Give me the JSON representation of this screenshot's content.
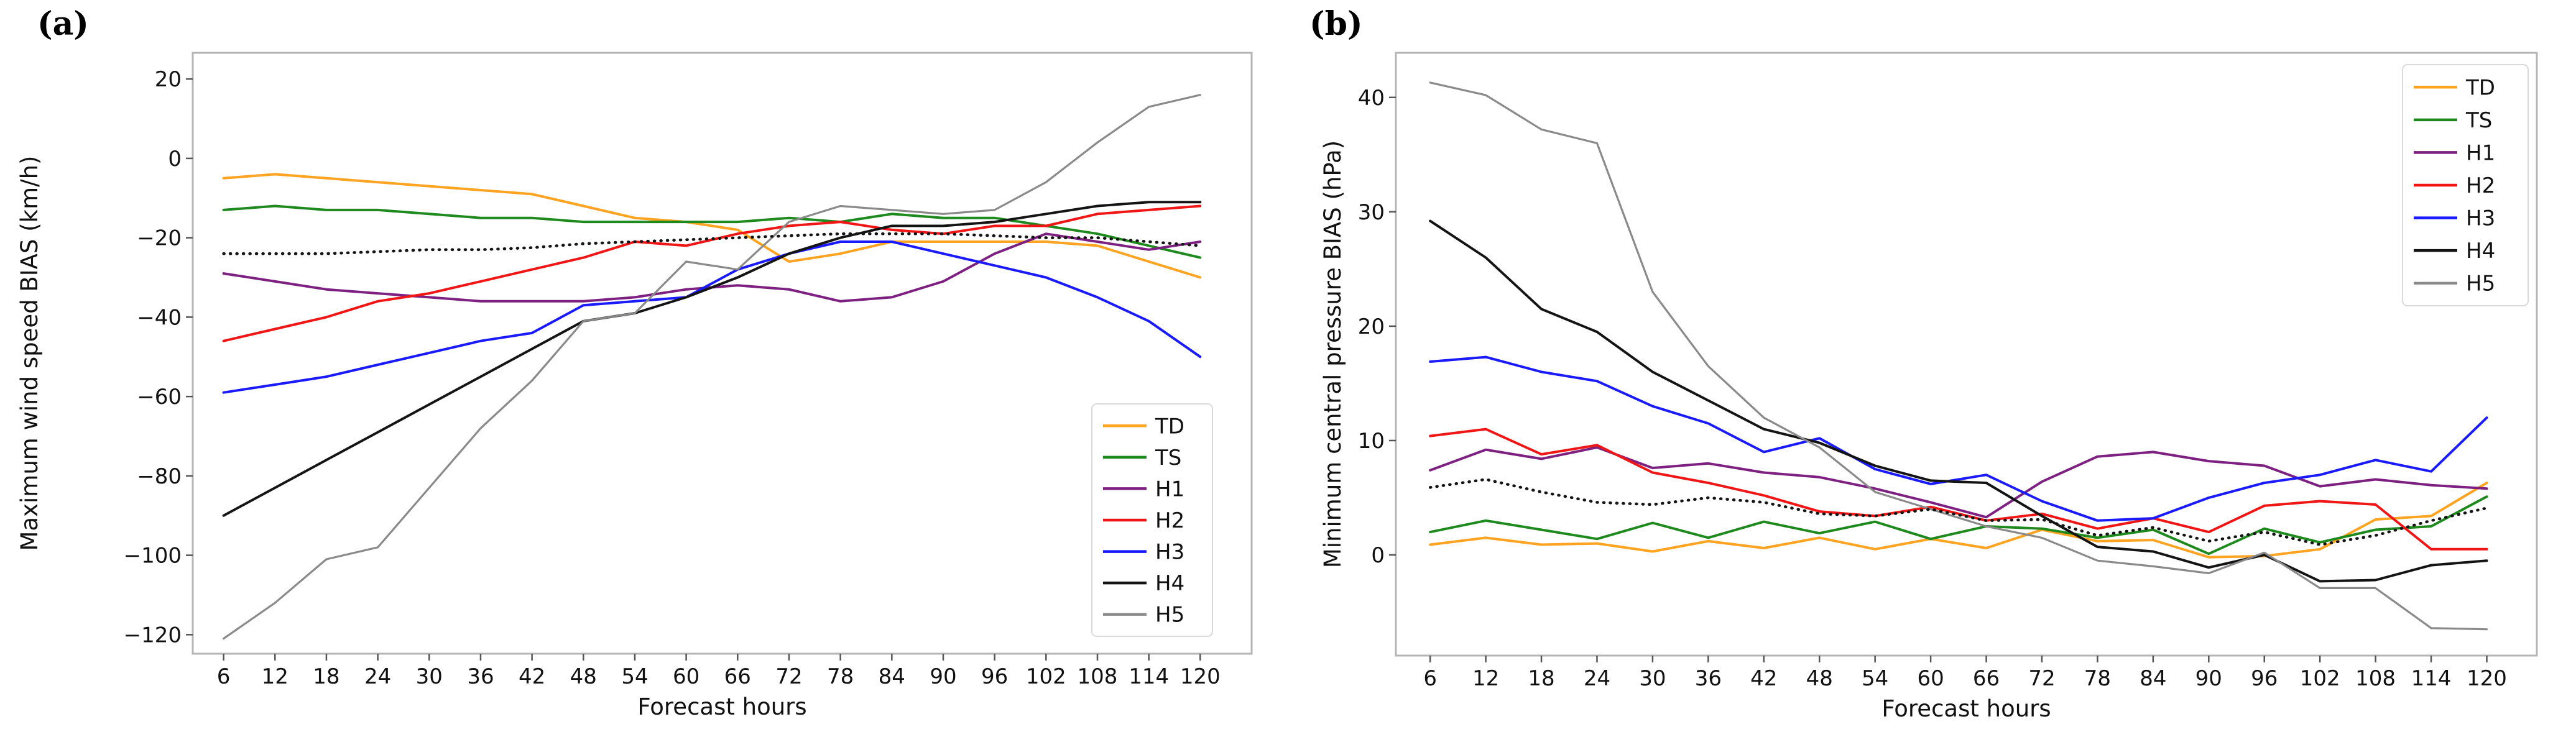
{
  "figure": {
    "background": "#ffffff",
    "frame_color": "#b5b5b5",
    "tick_color": "#555555",
    "text_color": "#111111"
  },
  "charts": [
    {
      "panel_label": "(a)",
      "type": "line",
      "xlabel": "Forecast hours",
      "ylabel": "Maximum wind speed BIAS (km/h)",
      "x_ticks": [
        6,
        12,
        18,
        24,
        30,
        36,
        42,
        48,
        54,
        60,
        66,
        72,
        78,
        84,
        90,
        96,
        102,
        108,
        114,
        120
      ],
      "y_ticks": [
        20,
        0,
        -20,
        -40,
        -60,
        -80,
        -100,
        -120
      ],
      "xlim": [
        2.4,
        126.0
      ],
      "ylim": [
        -124.8,
        26.6
      ],
      "grid": false,
      "legend_position": "bottom-right",
      "x": [
        6,
        12,
        18,
        24,
        30,
        36,
        42,
        48,
        54,
        60,
        66,
        72,
        78,
        84,
        90,
        96,
        102,
        108,
        114,
        120
      ],
      "series": [
        {
          "name": "TD",
          "color": "#FFA320",
          "dotted": false,
          "in_legend": true,
          "values": [
            -5,
            -4,
            -5,
            -6,
            -7,
            -8,
            -9,
            -12,
            -15,
            -16,
            -18,
            -26,
            -24,
            -21,
            -21,
            -21,
            -21,
            -22,
            -26,
            -30
          ]
        },
        {
          "name": "TS",
          "color": "#1E8A1E",
          "dotted": false,
          "in_legend": true,
          "values": [
            -13,
            -12,
            -13,
            -13,
            -14,
            -15,
            -15,
            -16,
            -16,
            -16,
            -16,
            -15,
            -16,
            -14,
            -15,
            -15,
            -17,
            -19,
            -22,
            -25
          ]
        },
        {
          "name": "H1",
          "color": "#7D2081",
          "dotted": false,
          "in_legend": true,
          "values": [
            -29,
            -31,
            -33,
            -34,
            -35,
            -36,
            -36,
            -36,
            -35,
            -33,
            -32,
            -33,
            -36,
            -35,
            -31,
            -24,
            -19,
            -21,
            -23,
            -21
          ]
        },
        {
          "name": "H2",
          "color": "#F11616",
          "dotted": false,
          "in_legend": true,
          "values": [
            -46,
            -43,
            -40,
            -36,
            -34,
            -31,
            -28,
            -25,
            -21,
            -22,
            -19,
            -17,
            -16,
            -18,
            -19,
            -17,
            -17,
            -14,
            -13,
            -12
          ]
        },
        {
          "name": "H3",
          "color": "#1A1AFF",
          "dotted": false,
          "in_legend": true,
          "values": [
            -59,
            -57,
            -55,
            -52,
            -49,
            -46,
            -44,
            -37,
            -36,
            -35,
            -28,
            -24,
            -21,
            -21,
            -24,
            -27,
            -30,
            -35,
            -41,
            -50
          ]
        },
        {
          "name": "H4",
          "color": "#141414",
          "dotted": false,
          "in_legend": true,
          "values": [
            -90,
            -83,
            -76,
            -69,
            -62,
            -55,
            -48,
            -41,
            -39,
            -35,
            -30,
            -24,
            -20,
            -17,
            -17,
            -16,
            -14,
            -12,
            -11,
            -11
          ]
        },
        {
          "name": "H5",
          "color": "#8A8A8A",
          "dotted": false,
          "in_legend": true,
          "width": 3.2,
          "values": [
            -121,
            -112,
            -101,
            -98,
            -83,
            -68,
            -56,
            -41,
            -39,
            -26,
            -28,
            -16,
            -12,
            -13,
            -14,
            -13,
            -6,
            4,
            13,
            16
          ]
        },
        {
          "name": "mean",
          "color": "#141414",
          "dotted": true,
          "in_legend": false,
          "values": [
            -24,
            -24,
            -24,
            -23.5,
            -23,
            -23,
            -22.5,
            -21.5,
            -21,
            -20.5,
            -20,
            -19.5,
            -19,
            -19,
            -19,
            -19.5,
            -20,
            -20,
            -21,
            -22
          ]
        }
      ]
    },
    {
      "panel_label": "(b)",
      "type": "line",
      "xlabel": "Forecast hours",
      "ylabel": "Minimum central pressure BIAS (hPa)",
      "x_ticks": [
        6,
        12,
        18,
        24,
        30,
        36,
        42,
        48,
        54,
        60,
        66,
        72,
        78,
        84,
        90,
        96,
        102,
        108,
        114,
        120
      ],
      "y_ticks": [
        40,
        30,
        20,
        10,
        0
      ],
      "xlim": [
        2.3,
        125.4
      ],
      "ylim": [
        -8.8,
        43.9
      ],
      "grid": false,
      "legend_position": "top-right",
      "x": [
        6,
        12,
        18,
        24,
        30,
        36,
        42,
        48,
        54,
        60,
        66,
        72,
        78,
        84,
        90,
        96,
        102,
        108,
        114,
        120
      ],
      "series": [
        {
          "name": "TD",
          "color": "#FFA320",
          "dotted": false,
          "in_legend": true,
          "values": [
            0.9,
            1.5,
            0.9,
            1.0,
            0.3,
            1.2,
            0.6,
            1.5,
            0.5,
            1.4,
            0.6,
            2.2,
            1.2,
            1.3,
            -0.2,
            -0.1,
            0.5,
            3.1,
            3.4,
            6.3
          ]
        },
        {
          "name": "TS",
          "color": "#1E8A1E",
          "dotted": false,
          "in_legend": true,
          "values": [
            2.0,
            3.0,
            2.2,
            1.4,
            2.8,
            1.5,
            2.9,
            1.9,
            2.9,
            1.4,
            2.5,
            2.3,
            1.5,
            2.2,
            0.1,
            2.3,
            1.1,
            2.2,
            2.5,
            5.1
          ]
        },
        {
          "name": "H1",
          "color": "#7D2081",
          "dotted": false,
          "in_legend": true,
          "values": [
            7.4,
            9.2,
            8.4,
            9.4,
            7.6,
            8.0,
            7.2,
            6.8,
            5.8,
            4.6,
            3.3,
            6.4,
            8.6,
            9.0,
            8.2,
            7.8,
            6.0,
            6.6,
            6.1,
            5.8
          ]
        },
        {
          "name": "H2",
          "color": "#F11616",
          "dotted": false,
          "in_legend": true,
          "values": [
            10.4,
            11.0,
            8.8,
            9.6,
            7.2,
            6.3,
            5.2,
            3.8,
            3.4,
            4.2,
            3.0,
            3.6,
            2.3,
            3.2,
            2.0,
            4.3,
            4.7,
            4.4,
            0.5,
            0.5
          ]
        },
        {
          "name": "H3",
          "color": "#1A1AFF",
          "dotted": false,
          "in_legend": true,
          "values": [
            16.9,
            17.3,
            16.0,
            15.2,
            13.0,
            11.5,
            9.0,
            10.2,
            7.5,
            6.2,
            7.0,
            4.7,
            3.0,
            3.2,
            5.0,
            6.3,
            7.0,
            8.3,
            7.3,
            12.0
          ]
        },
        {
          "name": "H4",
          "color": "#141414",
          "dotted": false,
          "in_legend": true,
          "values": [
            29.2,
            26.0,
            21.5,
            19.5,
            16.0,
            13.5,
            11.0,
            9.8,
            7.8,
            6.5,
            6.3,
            3.4,
            0.7,
            0.3,
            -1.1,
            0.0,
            -2.3,
            -2.2,
            -0.9,
            -0.5
          ]
        },
        {
          "name": "H5",
          "color": "#8A8A8A",
          "dotted": false,
          "in_legend": true,
          "width": 3.2,
          "values": [
            41.3,
            40.2,
            37.2,
            36.0,
            23.0,
            16.5,
            12.0,
            9.4,
            5.5,
            4.0,
            2.5,
            1.5,
            -0.5,
            -1.0,
            -1.6,
            0.2,
            -2.9,
            -2.9,
            -6.4,
            -6.5
          ]
        },
        {
          "name": "mean",
          "color": "#141414",
          "dotted": true,
          "in_legend": false,
          "values": [
            5.9,
            6.6,
            5.5,
            4.6,
            4.4,
            5.0,
            4.6,
            3.6,
            3.4,
            4.0,
            3.0,
            3.1,
            1.7,
            2.4,
            1.2,
            2.0,
            0.9,
            1.7,
            3.0,
            4.1
          ]
        }
      ]
    }
  ],
  "chart_data": {
    "note": "Two-panel line figure; same data as charts[0] and charts[1].",
    "panels": [
      "(a) Maximum wind speed BIAS (km/h) vs Forecast hours",
      "(b) Minimum central pressure BIAS (hPa) vs Forecast hours"
    ],
    "legend_entries": [
      "TD",
      "TS",
      "H1",
      "H2",
      "H3",
      "H4",
      "H5"
    ],
    "extra_series": "unlabeled black dotted line (overall mean) in both panels"
  }
}
